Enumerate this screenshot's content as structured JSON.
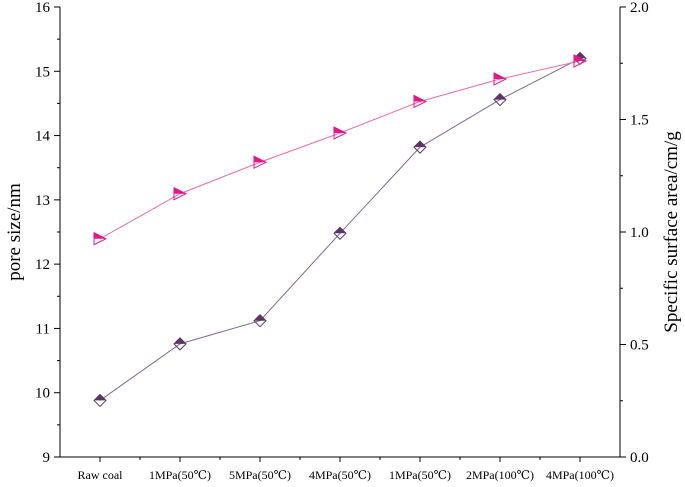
{
  "chart_data": {
    "type": "line",
    "categories": [
      "Raw coal",
      "1MPa(50℃)",
      "5MPa(50℃)",
      "4MPa(50℃)",
      "1MPa(50℃)",
      "2MPa(100℃)",
      "4MPa(100℃)"
    ],
    "ylabel": "pore size/nm",
    "y2label": "Specific surface area/cm/g",
    "ylim": [
      9,
      16
    ],
    "y2lim": [
      0.0,
      2.0
    ],
    "yticks": [
      "9",
      "10",
      "11",
      "12",
      "13",
      "14",
      "15",
      "16"
    ],
    "y2ticks": [
      "0.0",
      "0.5",
      "1.0",
      "1.5",
      "2.0"
    ],
    "grid": false,
    "series": [
      {
        "axis": "left",
        "marker": "half-filled-diamond",
        "color": "#5c3566",
        "line_color": "#7f6a8a",
        "values": [
          9.88,
          10.76,
          11.12,
          12.48,
          13.82,
          14.56,
          15.2
        ]
      },
      {
        "axis": "right",
        "marker": "half-filled-right-triangle",
        "color": "#e0198c",
        "line_color": "#f06aa8",
        "values": [
          0.97,
          1.17,
          1.31,
          1.44,
          1.58,
          1.68,
          1.76
        ]
      }
    ]
  }
}
